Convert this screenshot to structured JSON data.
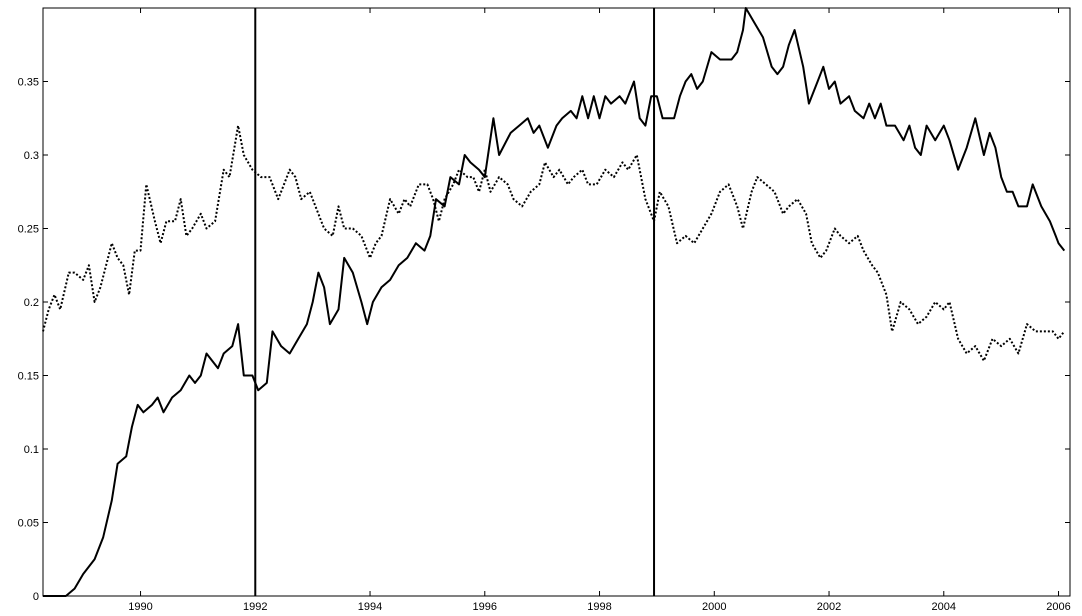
{
  "chart_data": {
    "type": "line",
    "title": "",
    "xlabel": "",
    "ylabel": "",
    "xlim": [
      1988.3,
      2006.2
    ],
    "ylim": [
      0,
      0.4
    ],
    "grid": false,
    "legend": "none",
    "x_ticks": [
      1990,
      1992,
      1994,
      1996,
      1998,
      2000,
      2002,
      2004,
      2006
    ],
    "x_tick_labels": [
      "1990",
      "1992",
      "1994",
      "1996",
      "1998",
      "2000",
      "2002",
      "2004",
      "2006"
    ],
    "y_ticks": [
      0,
      0.05,
      0.1,
      0.15,
      0.2,
      0.25,
      0.3,
      0.35
    ],
    "y_tick_labels": [
      "0",
      "0.05",
      "0.1",
      "0.15",
      "0.2",
      "0.25",
      "0.3",
      "0.35"
    ],
    "vertical_lines": [
      1992.0,
      1998.95
    ],
    "series": [
      {
        "style": "solid",
        "color": "#000000",
        "points": [
          [
            1988.3,
            0.0
          ],
          [
            1988.7,
            0.0
          ],
          [
            1988.85,
            0.005
          ],
          [
            1989.0,
            0.015
          ],
          [
            1989.2,
            0.025
          ],
          [
            1989.35,
            0.04
          ],
          [
            1989.5,
            0.065
          ],
          [
            1989.6,
            0.09
          ],
          [
            1989.75,
            0.095
          ],
          [
            1989.85,
            0.115
          ],
          [
            1989.95,
            0.13
          ],
          [
            1990.05,
            0.125
          ],
          [
            1990.2,
            0.13
          ],
          [
            1990.3,
            0.135
          ],
          [
            1990.4,
            0.125
          ],
          [
            1990.55,
            0.135
          ],
          [
            1990.7,
            0.14
          ],
          [
            1990.85,
            0.15
          ],
          [
            1990.95,
            0.145
          ],
          [
            1991.05,
            0.15
          ],
          [
            1991.15,
            0.165
          ],
          [
            1991.35,
            0.155
          ],
          [
            1991.45,
            0.165
          ],
          [
            1991.6,
            0.17
          ],
          [
            1991.7,
            0.185
          ],
          [
            1991.8,
            0.15
          ],
          [
            1991.95,
            0.15
          ],
          [
            1992.05,
            0.14
          ],
          [
            1992.2,
            0.145
          ],
          [
            1992.3,
            0.18
          ],
          [
            1992.45,
            0.17
          ],
          [
            1992.6,
            0.165
          ],
          [
            1992.75,
            0.175
          ],
          [
            1992.9,
            0.185
          ],
          [
            1993.0,
            0.2
          ],
          [
            1993.1,
            0.22
          ],
          [
            1993.2,
            0.21
          ],
          [
            1993.3,
            0.185
          ],
          [
            1993.45,
            0.195
          ],
          [
            1993.55,
            0.23
          ],
          [
            1993.7,
            0.22
          ],
          [
            1993.85,
            0.2
          ],
          [
            1993.95,
            0.185
          ],
          [
            1994.05,
            0.2
          ],
          [
            1994.2,
            0.21
          ],
          [
            1994.35,
            0.215
          ],
          [
            1994.5,
            0.225
          ],
          [
            1994.65,
            0.23
          ],
          [
            1994.8,
            0.24
          ],
          [
            1994.95,
            0.235
          ],
          [
            1995.05,
            0.245
          ],
          [
            1995.15,
            0.27
          ],
          [
            1995.3,
            0.265
          ],
          [
            1995.4,
            0.285
          ],
          [
            1995.55,
            0.28
          ],
          [
            1995.65,
            0.3
          ],
          [
            1995.75,
            0.295
          ],
          [
            1995.9,
            0.29
          ],
          [
            1996.0,
            0.285
          ],
          [
            1996.15,
            0.325
          ],
          [
            1996.25,
            0.3
          ],
          [
            1996.45,
            0.315
          ],
          [
            1996.6,
            0.32
          ],
          [
            1996.75,
            0.325
          ],
          [
            1996.85,
            0.315
          ],
          [
            1996.95,
            0.32
          ],
          [
            1997.1,
            0.305
          ],
          [
            1997.25,
            0.32
          ],
          [
            1997.35,
            0.325
          ],
          [
            1997.5,
            0.33
          ],
          [
            1997.6,
            0.325
          ],
          [
            1997.7,
            0.34
          ],
          [
            1997.8,
            0.325
          ],
          [
            1997.9,
            0.34
          ],
          [
            1998.0,
            0.325
          ],
          [
            1998.1,
            0.34
          ],
          [
            1998.2,
            0.335
          ],
          [
            1998.35,
            0.34
          ],
          [
            1998.45,
            0.335
          ],
          [
            1998.6,
            0.35
          ],
          [
            1998.7,
            0.325
          ],
          [
            1998.8,
            0.32
          ],
          [
            1998.9,
            0.34
          ],
          [
            1999.0,
            0.34
          ],
          [
            1999.1,
            0.325
          ],
          [
            1999.3,
            0.325
          ],
          [
            1999.4,
            0.34
          ],
          [
            1999.5,
            0.35
          ],
          [
            1999.6,
            0.355
          ],
          [
            1999.7,
            0.345
          ],
          [
            1999.8,
            0.35
          ],
          [
            1999.95,
            0.37
          ],
          [
            2000.1,
            0.365
          ],
          [
            2000.3,
            0.365
          ],
          [
            2000.4,
            0.37
          ],
          [
            2000.5,
            0.385
          ],
          [
            2000.55,
            0.4
          ],
          [
            2000.7,
            0.39
          ],
          [
            2000.85,
            0.38
          ],
          [
            2001.0,
            0.36
          ],
          [
            2001.1,
            0.355
          ],
          [
            2001.2,
            0.36
          ],
          [
            2001.3,
            0.375
          ],
          [
            2001.4,
            0.385
          ],
          [
            2001.55,
            0.36
          ],
          [
            2001.65,
            0.335
          ],
          [
            2001.8,
            0.35
          ],
          [
            2001.9,
            0.36
          ],
          [
            2002.0,
            0.345
          ],
          [
            2002.1,
            0.35
          ],
          [
            2002.2,
            0.335
          ],
          [
            2002.35,
            0.34
          ],
          [
            2002.45,
            0.33
          ],
          [
            2002.6,
            0.325
          ],
          [
            2002.7,
            0.335
          ],
          [
            2002.8,
            0.325
          ],
          [
            2002.9,
            0.335
          ],
          [
            2003.0,
            0.32
          ],
          [
            2003.15,
            0.32
          ],
          [
            2003.3,
            0.31
          ],
          [
            2003.4,
            0.32
          ],
          [
            2003.5,
            0.305
          ],
          [
            2003.6,
            0.3
          ],
          [
            2003.7,
            0.32
          ],
          [
            2003.85,
            0.31
          ],
          [
            2004.0,
            0.32
          ],
          [
            2004.1,
            0.31
          ],
          [
            2004.25,
            0.29
          ],
          [
            2004.4,
            0.305
          ],
          [
            2004.55,
            0.325
          ],
          [
            2004.7,
            0.3
          ],
          [
            2004.8,
            0.315
          ],
          [
            2004.9,
            0.305
          ],
          [
            2005.0,
            0.285
          ],
          [
            2005.1,
            0.275
          ],
          [
            2005.2,
            0.275
          ],
          [
            2005.3,
            0.265
          ],
          [
            2005.45,
            0.265
          ],
          [
            2005.55,
            0.28
          ],
          [
            2005.7,
            0.265
          ],
          [
            2005.85,
            0.255
          ],
          [
            2005.95,
            0.245
          ],
          [
            2006.0,
            0.24
          ],
          [
            2006.1,
            0.235
          ]
        ]
      },
      {
        "style": "dotted",
        "color": "#000000",
        "points": [
          [
            1988.3,
            0.18
          ],
          [
            1988.4,
            0.195
          ],
          [
            1988.5,
            0.205
          ],
          [
            1988.6,
            0.195
          ],
          [
            1988.75,
            0.22
          ],
          [
            1988.85,
            0.22
          ],
          [
            1989.0,
            0.215
          ],
          [
            1989.1,
            0.225
          ],
          [
            1989.2,
            0.2
          ],
          [
            1989.3,
            0.21
          ],
          [
            1989.4,
            0.225
          ],
          [
            1989.5,
            0.24
          ],
          [
            1989.6,
            0.23
          ],
          [
            1989.7,
            0.225
          ],
          [
            1989.8,
            0.205
          ],
          [
            1989.9,
            0.235
          ],
          [
            1990.0,
            0.235
          ],
          [
            1990.1,
            0.28
          ],
          [
            1990.25,
            0.255
          ],
          [
            1990.35,
            0.24
          ],
          [
            1990.45,
            0.255
          ],
          [
            1990.6,
            0.255
          ],
          [
            1990.7,
            0.27
          ],
          [
            1990.8,
            0.245
          ],
          [
            1990.9,
            0.25
          ],
          [
            1991.05,
            0.26
          ],
          [
            1991.15,
            0.25
          ],
          [
            1991.3,
            0.255
          ],
          [
            1991.45,
            0.29
          ],
          [
            1991.55,
            0.285
          ],
          [
            1991.7,
            0.32
          ],
          [
            1991.8,
            0.3
          ],
          [
            1991.95,
            0.29
          ],
          [
            1992.1,
            0.285
          ],
          [
            1992.25,
            0.285
          ],
          [
            1992.4,
            0.27
          ],
          [
            1992.5,
            0.28
          ],
          [
            1992.6,
            0.29
          ],
          [
            1992.7,
            0.285
          ],
          [
            1992.8,
            0.27
          ],
          [
            1992.95,
            0.275
          ],
          [
            1993.05,
            0.265
          ],
          [
            1993.2,
            0.25
          ],
          [
            1993.35,
            0.245
          ],
          [
            1993.45,
            0.265
          ],
          [
            1993.55,
            0.25
          ],
          [
            1993.7,
            0.25
          ],
          [
            1993.85,
            0.245
          ],
          [
            1994.0,
            0.23
          ],
          [
            1994.1,
            0.24
          ],
          [
            1994.2,
            0.245
          ],
          [
            1994.35,
            0.27
          ],
          [
            1994.5,
            0.26
          ],
          [
            1994.6,
            0.27
          ],
          [
            1994.7,
            0.265
          ],
          [
            1994.85,
            0.28
          ],
          [
            1995.0,
            0.28
          ],
          [
            1995.1,
            0.27
          ],
          [
            1995.2,
            0.255
          ],
          [
            1995.3,
            0.27
          ],
          [
            1995.45,
            0.28
          ],
          [
            1995.55,
            0.29
          ],
          [
            1995.7,
            0.285
          ],
          [
            1995.8,
            0.285
          ],
          [
            1995.9,
            0.275
          ],
          [
            1996.0,
            0.29
          ],
          [
            1996.1,
            0.275
          ],
          [
            1996.25,
            0.285
          ],
          [
            1996.4,
            0.28
          ],
          [
            1996.5,
            0.27
          ],
          [
            1996.65,
            0.265
          ],
          [
            1996.8,
            0.275
          ],
          [
            1996.95,
            0.28
          ],
          [
            1997.05,
            0.295
          ],
          [
            1997.2,
            0.285
          ],
          [
            1997.3,
            0.29
          ],
          [
            1997.45,
            0.28
          ],
          [
            1997.55,
            0.285
          ],
          [
            1997.7,
            0.29
          ],
          [
            1997.8,
            0.28
          ],
          [
            1997.95,
            0.28
          ],
          [
            1998.1,
            0.29
          ],
          [
            1998.25,
            0.285
          ],
          [
            1998.4,
            0.295
          ],
          [
            1998.5,
            0.29
          ],
          [
            1998.65,
            0.3
          ],
          [
            1998.8,
            0.27
          ],
          [
            1998.95,
            0.255
          ],
          [
            1999.05,
            0.275
          ],
          [
            1999.2,
            0.265
          ],
          [
            1999.35,
            0.24
          ],
          [
            1999.5,
            0.245
          ],
          [
            1999.65,
            0.24
          ],
          [
            1999.8,
            0.25
          ],
          [
            1999.95,
            0.26
          ],
          [
            2000.1,
            0.275
          ],
          [
            2000.25,
            0.28
          ],
          [
            2000.4,
            0.265
          ],
          [
            2000.5,
            0.25
          ],
          [
            2000.65,
            0.275
          ],
          [
            2000.75,
            0.285
          ],
          [
            2000.9,
            0.28
          ],
          [
            2001.05,
            0.275
          ],
          [
            2001.2,
            0.26
          ],
          [
            2001.3,
            0.265
          ],
          [
            2001.45,
            0.27
          ],
          [
            2001.6,
            0.26
          ],
          [
            2001.7,
            0.24
          ],
          [
            2001.85,
            0.23
          ],
          [
            2001.95,
            0.235
          ],
          [
            2002.1,
            0.25
          ],
          [
            2002.2,
            0.245
          ],
          [
            2002.35,
            0.24
          ],
          [
            2002.5,
            0.245
          ],
          [
            2002.6,
            0.235
          ],
          [
            2002.75,
            0.225
          ],
          [
            2002.85,
            0.22
          ],
          [
            2003.0,
            0.205
          ],
          [
            2003.1,
            0.18
          ],
          [
            2003.25,
            0.2
          ],
          [
            2003.4,
            0.195
          ],
          [
            2003.55,
            0.185
          ],
          [
            2003.7,
            0.19
          ],
          [
            2003.85,
            0.2
          ],
          [
            2004.0,
            0.195
          ],
          [
            2004.1,
            0.2
          ],
          [
            2004.25,
            0.175
          ],
          [
            2004.4,
            0.165
          ],
          [
            2004.55,
            0.17
          ],
          [
            2004.7,
            0.16
          ],
          [
            2004.85,
            0.175
          ],
          [
            2005.0,
            0.17
          ],
          [
            2005.15,
            0.175
          ],
          [
            2005.3,
            0.165
          ],
          [
            2005.45,
            0.185
          ],
          [
            2005.6,
            0.18
          ],
          [
            2005.75,
            0.18
          ],
          [
            2005.9,
            0.18
          ],
          [
            2006.0,
            0.175
          ],
          [
            2006.1,
            0.18
          ]
        ]
      }
    ]
  }
}
